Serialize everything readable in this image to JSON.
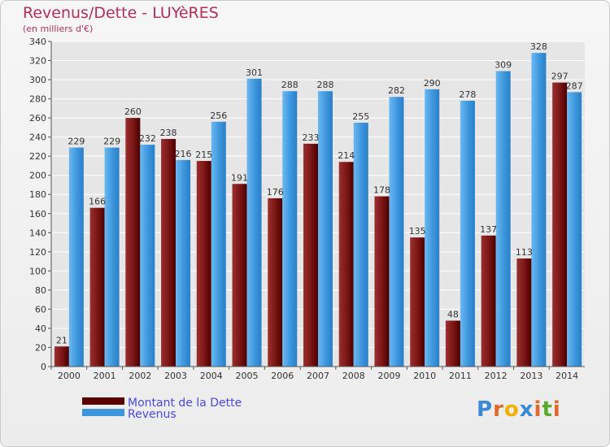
{
  "header": {
    "title": "Revenus/Dette - LUYèRES",
    "subtitle": "(en milliers d'€)"
  },
  "brand": {
    "letters": [
      "P",
      "r",
      "o",
      "x",
      "i",
      "t",
      "i"
    ],
    "colors": [
      "#3a88d6",
      "#e0682a",
      "#f0b000",
      "#3a88d6",
      "#e0682a",
      "#5aaa2a",
      "#e0682a"
    ]
  },
  "colors": {
    "dette": "#7a1414",
    "revenus": "#2f8ad6",
    "grid": "#ffffff",
    "axis": "#555555"
  },
  "chart_data": {
    "type": "bar",
    "categories": [
      "2000",
      "2001",
      "2002",
      "2003",
      "2004",
      "2005",
      "2006",
      "2007",
      "2008",
      "2009",
      "2010",
      "2011",
      "2012",
      "2013",
      "2014"
    ],
    "series": [
      {
        "name": "Montant de la Dette",
        "values": [
          21,
          166,
          260,
          238,
          215,
          191,
          176,
          233,
          214,
          178,
          135,
          48,
          137,
          113,
          297
        ]
      },
      {
        "name": "Revenus",
        "values": [
          229,
          229,
          232,
          216,
          256,
          301,
          288,
          288,
          255,
          282,
          290,
          278,
          309,
          328,
          287
        ]
      }
    ],
    "title": "Revenus/Dette - LUYèRES",
    "ylabel": "(en milliers d'€)",
    "ylim": [
      0,
      340
    ],
    "ytick_step": 20,
    "grid": true,
    "legend_position": "bottom-left"
  }
}
